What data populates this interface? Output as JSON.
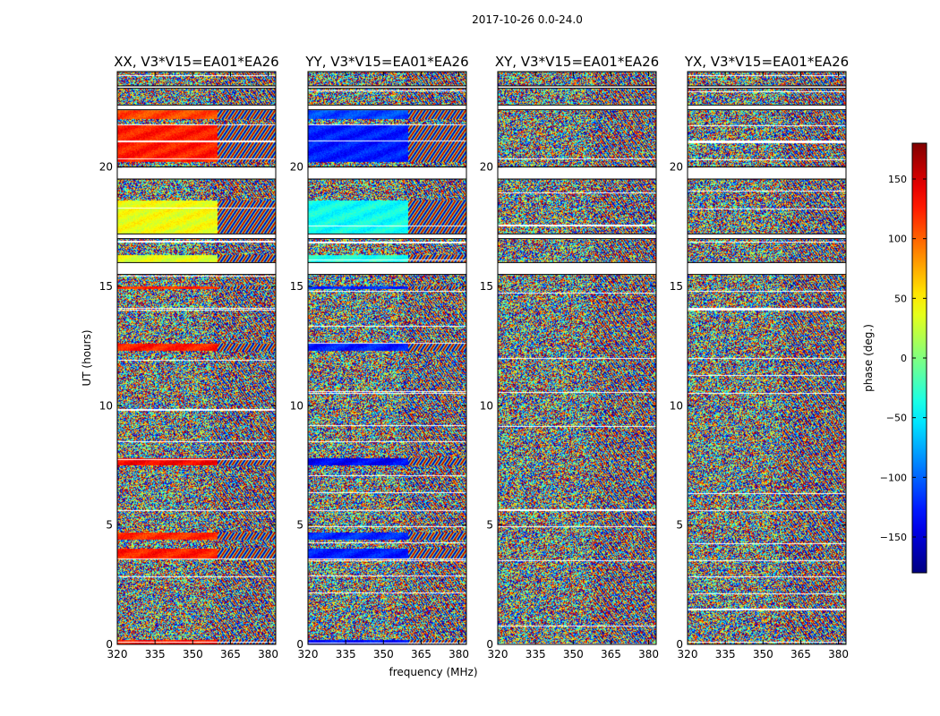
{
  "figure": {
    "suptitle": "2017-10-26 0.0-24.0",
    "xlabel": "frequency (MHz)",
    "ylabel": "UT (hours)"
  },
  "chart_data": {
    "type": "heatmap",
    "x_ticks": [
      320,
      335,
      350,
      365,
      380
    ],
    "xlim": [
      320,
      383
    ],
    "y_ticks": [
      0,
      5,
      10,
      15,
      20
    ],
    "ylim": [
      0,
      24
    ],
    "panels": [
      {
        "title": "XX, V3*V15=EA01*EA26",
        "mode": "parallel",
        "sign": 1
      },
      {
        "title": "YY, V3*V15=EA01*EA26",
        "mode": "parallel",
        "sign": -1
      },
      {
        "title": "XY, V3*V15=EA01*EA26",
        "mode": "cross",
        "sign": 1
      },
      {
        "title": "YX, V3*V15=EA01*EA26",
        "mode": "cross",
        "sign": 1
      }
    ],
    "colorbar": {
      "label": "phase (deg.)",
      "range": [
        -180,
        180
      ],
      "ticks": [
        150,
        100,
        50,
        0,
        -50,
        -100,
        -150
      ],
      "cmap": "jet"
    },
    "flagged_hours": [
      [
        19.5,
        20.0
      ],
      [
        15.5,
        16.0
      ],
      [
        22.4,
        22.6
      ],
      [
        23.3,
        23.4
      ],
      [
        17.0,
        17.2
      ]
    ],
    "noise_bands": [
      [
        0.0,
        3.6
      ],
      [
        4.9,
        7.5
      ],
      [
        8.6,
        11.8
      ],
      [
        12.8,
        14.9
      ],
      [
        22.8,
        24.0
      ]
    ],
    "coherent_bands": [
      {
        "from": 0.0,
        "to": 0.2,
        "phase": 130
      },
      {
        "from": 3.6,
        "to": 4.0,
        "phase": 125
      },
      {
        "from": 4.4,
        "to": 4.7,
        "phase": 120
      },
      {
        "from": 7.5,
        "to": 7.8,
        "phase": 135
      },
      {
        "from": 12.3,
        "to": 12.6,
        "phase": 125
      },
      {
        "from": 14.9,
        "to": 15.0,
        "phase": 120
      },
      {
        "from": 15.6,
        "to": 16.3,
        "phase": 35
      },
      {
        "from": 17.2,
        "to": 18.6,
        "phase": 40
      },
      {
        "from": 20.2,
        "to": 21.8,
        "phase": 125
      },
      {
        "from": 22.0,
        "to": 22.4,
        "phase": 110
      }
    ]
  }
}
